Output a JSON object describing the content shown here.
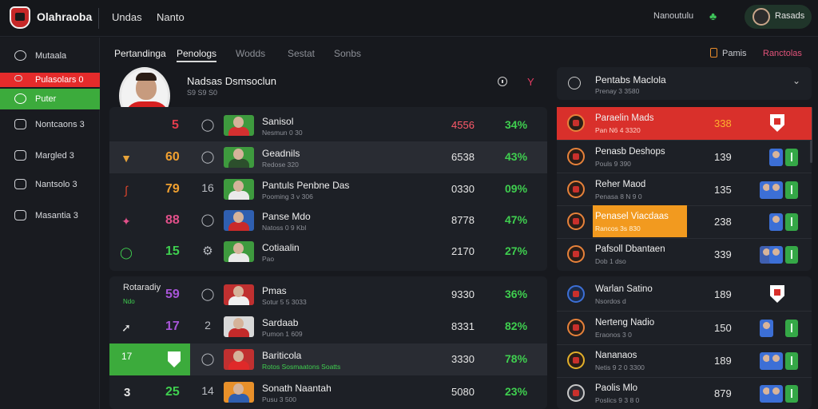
{
  "app": {
    "title": "Olahraoba"
  },
  "topnav": {
    "item1": "Undas",
    "item2": "Nanto"
  },
  "topbar_right": {
    "text": "Nanoutulu",
    "user_label": "Rasads"
  },
  "sidebar": {
    "items": [
      {
        "label": "Mutaala"
      },
      {
        "label": "Pulasolars 0"
      },
      {
        "label": "Puter"
      },
      {
        "label": "Nontcaons 3"
      },
      {
        "label": "Margled 3"
      },
      {
        "label": "Nantsolo 3"
      },
      {
        "label": "Masantia 3"
      }
    ]
  },
  "tabs": [
    "Pertandinga",
    "Penologs",
    "Wodds",
    "Sestat",
    "Sonbs"
  ],
  "right_links": {
    "link1": "Pamis",
    "link2": "Ranctolas"
  },
  "profile": {
    "name": "Nadsas Dsmsoclun",
    "sub": "S9 S9 S0"
  },
  "left_rows": [
    {
      "rank": "5",
      "pos": "8",
      "name": "Sanisol",
      "sub": "Nesmun 0 30",
      "score": "4556",
      "pct": "34%"
    },
    {
      "rank": "60",
      "pos": "8",
      "name": "Geadnils",
      "sub": "Redose 320",
      "score": "6538",
      "pct": "43%"
    },
    {
      "rank": "79",
      "pos": "16",
      "name": "Pantuls Penbne Das",
      "sub": "Pooming 3 v 306",
      "score": "0330",
      "pct": "09%"
    },
    {
      "rank": "88",
      "pos": "8",
      "name": "Panse Mdo",
      "sub": "Natoss 0 9 Kbl",
      "score": "8778",
      "pct": "47%"
    },
    {
      "rank": "15",
      "pos": "8",
      "name": "Cotiaalin",
      "sub": "Pao",
      "score": "2170",
      "pct": "27%"
    }
  ],
  "section2": {
    "title": "Rotaradiy",
    "sub": "Ndo"
  },
  "left_rows2": [
    {
      "rank": "59",
      "pos": "8",
      "name": "Pmas",
      "sub": "Sotur 5 5 3033",
      "score": "9330",
      "pct": "36%"
    },
    {
      "rank": "17",
      "pos": "2",
      "name": "Sardaab",
      "sub": "Pumon 1 609",
      "score": "8331",
      "pct": "82%"
    },
    {
      "rank": "17",
      "pos": "8",
      "name": "Bariticola",
      "sub": "Rotos Sosmaatons Soatts",
      "score": "3330",
      "pct": "78%"
    },
    {
      "rank": "25",
      "pos": "14",
      "name": "Sonath Naantah",
      "sub": "Pusu 3 500",
      "score": "5080",
      "pct": "23%"
    }
  ],
  "right_select": {
    "name": "Pentabs Maclola",
    "sub": "Prenay 3 3580"
  },
  "right_rows": [
    {
      "name": "Paraelin Mads",
      "sub": "Pan N6 4 3320",
      "value": "338"
    },
    {
      "name": "Penasb Deshops",
      "sub": "Pouls 9 390",
      "value": "139"
    },
    {
      "name": "Reher Maod",
      "sub": "Penasa 8 N 9 0",
      "value": "135"
    },
    {
      "name": "Penasel Viacdaas",
      "sub": "Rancos 3s 830",
      "value": "238"
    },
    {
      "name": "Pafsoll Dbantaen",
      "sub": "Dob 1 dso",
      "value": "339"
    }
  ],
  "right_rows2": [
    {
      "name": "Warlan Satino",
      "sub": "Nsordos d",
      "value": "189"
    },
    {
      "name": "Nerteng Nadio",
      "sub": "Eraonos 3 0",
      "value": "150"
    },
    {
      "name": "Nananaos",
      "sub": "Netis 9 2 0 3300",
      "value": "189"
    },
    {
      "name": "Paolis Mlo",
      "sub": "Poslics 9 3 8 0",
      "value": "879"
    }
  ],
  "colors": {
    "bg": "#17191e",
    "card": "#1d2026",
    "accent_red": "#e52b2b",
    "accent_green": "#3cab3c",
    "accent_orange": "#f29a1f",
    "pct_green": "#3fcf4f"
  }
}
